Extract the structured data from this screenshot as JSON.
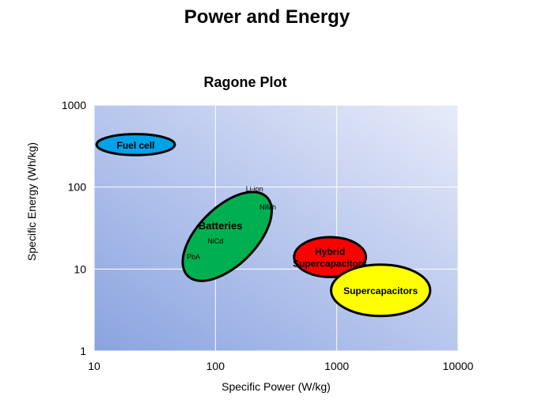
{
  "page": {
    "title": "Power and Energy"
  },
  "chart_data": {
    "type": "scatter",
    "title": "Ragone Plot",
    "xlabel": "Specific Power (W/kg)",
    "ylabel": "Specific Energy (Wh/kg)",
    "x_scale": "log",
    "y_scale": "log",
    "xlim": [
      10,
      10000
    ],
    "ylim": [
      1,
      1000
    ],
    "x_ticks": [
      "10",
      "100",
      "1000",
      "10000"
    ],
    "y_ticks": [
      "1",
      "10",
      "100",
      "1000"
    ],
    "grid": true,
    "legend": "none",
    "regions": [
      {
        "label": "Fuel cell",
        "color": "#00a2e8",
        "center": [
          22,
          330
        ],
        "x_range": [
          10.2,
          45
        ],
        "y_range": [
          250,
          450
        ],
        "rotation_deg": 0
      },
      {
        "label": "Batteries",
        "color": "#00b050",
        "center": [
          125,
          25
        ],
        "x_range": [
          45,
          400
        ],
        "y_range": [
          6,
          110
        ],
        "rotation_deg": -45
      },
      {
        "label": "Hybrid Supercapacitors",
        "color": "#ff0000",
        "center": [
          880,
          14
        ],
        "x_range": [
          430,
          1680
        ],
        "y_range": [
          8.5,
          26
        ],
        "rotation_deg": 0
      },
      {
        "label": "Supercapacitors",
        "color": "#ffff00",
        "center": [
          2300,
          5.5
        ],
        "x_range": [
          930,
          6100
        ],
        "y_range": [
          2.6,
          11
        ],
        "rotation_deg": 0
      }
    ],
    "sub_labels": [
      {
        "label": "Li-ion",
        "x": 210,
        "y": 95
      },
      {
        "label": "NiMh",
        "x": 270,
        "y": 57
      },
      {
        "label": "NiCd",
        "x": 100,
        "y": 22
      },
      {
        "label": "PbA",
        "x": 66,
        "y": 14
      }
    ]
  }
}
